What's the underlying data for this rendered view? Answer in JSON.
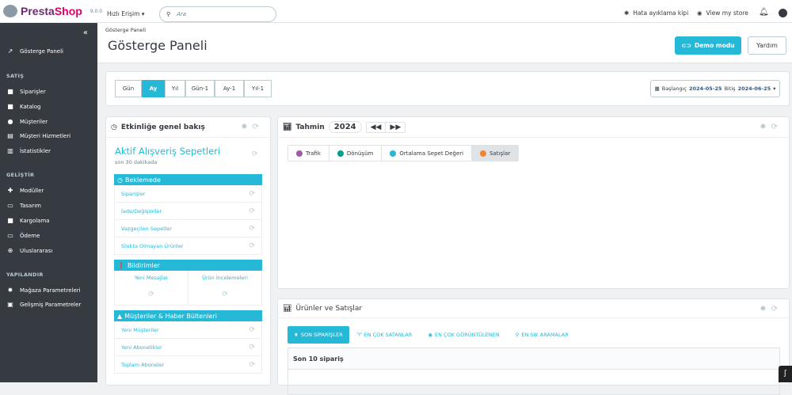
{
  "topbar": {
    "brand": "PrestaShop",
    "version": "9.0.0",
    "quick_access": "Hızlı Erişim",
    "search_placeholder": "Ara",
    "debug": "Hata ayıklama kipi",
    "view_store": "View my store"
  },
  "sidebar": {
    "dashboard": "Gösterge Paneli",
    "sections": [
      {
        "title": "SATIŞ",
        "items": [
          {
            "label": "Siparişler",
            "icon": "basket-icon"
          },
          {
            "label": "Katalog",
            "icon": "store-icon"
          },
          {
            "label": "Müşteriler",
            "icon": "user-circle-icon"
          },
          {
            "label": "Müşteri Hizmetleri",
            "icon": "chat-icon"
          },
          {
            "label": "İstatistikler",
            "icon": "stats-icon"
          }
        ]
      },
      {
        "title": "GELİŞTİR",
        "items": [
          {
            "label": "Modüller",
            "icon": "puzzle-icon"
          },
          {
            "label": "Tasarım",
            "icon": "desktop-icon"
          },
          {
            "label": "Kargolama",
            "icon": "truck-icon"
          },
          {
            "label": "Ödeme",
            "icon": "credit-card-icon"
          },
          {
            "label": "Uluslararası",
            "icon": "globe-icon"
          }
        ]
      },
      {
        "title": "YAPILANDIR",
        "items": [
          {
            "label": "Mağaza Parametreleri",
            "icon": "gear-icon"
          },
          {
            "label": "Gelişmiş Parametreler",
            "icon": "settings-box-icon"
          }
        ]
      }
    ]
  },
  "header": {
    "breadcrumb": "Gösterge Paneli",
    "title": "Gösterge Paneli",
    "demo": "Demo modu",
    "help": "Yardım"
  },
  "filters": {
    "periods": [
      "Gün",
      "Ay",
      "Yıl",
      "Gün-1",
      "Ay-1",
      "Yıl-1"
    ],
    "active": "Ay",
    "start_label": "Başlangıç",
    "start": "2024-05-25",
    "end_label": "Bitiş",
    "end": "2024-06-25"
  },
  "activity": {
    "title": "Etkinliğe genel bakış",
    "carts_title": "Aktif Alışveriş Sepetleri",
    "carts_sub": "son 30 dakikada",
    "pending": {
      "title": "Beklemede",
      "items": [
        "Siparişler",
        "İade/Değişimler",
        "Vazgeçilen Sepetler",
        "Stokta Olmayan Ürünler"
      ]
    },
    "notifications": {
      "title": "Bildirimler",
      "items": [
        "Yeni Mesajlar",
        "Ürün İncelemeleri"
      ]
    },
    "customers": {
      "title": "Müşteriler & Haber Bültenleri",
      "items": [
        "Yeni Müşteriler",
        "Yeni Abonelikler",
        "Toplam Aboneler"
      ]
    }
  },
  "forecast": {
    "title": "Tahmin",
    "year": "2024",
    "tabs": [
      {
        "label": "Trafik",
        "color": "#a35aa6"
      },
      {
        "label": "Dönüşüm",
        "color": "#00a08a"
      },
      {
        "label": "Ortalama Sepet Değeri",
        "color": "#25b9d7"
      },
      {
        "label": "Satışlar",
        "color": "#f08532"
      }
    ],
    "active": "Satışlar"
  },
  "products": {
    "title": "Ürünler ve Satışlar",
    "tabs": [
      "SON SİPARİŞLER",
      "EN ÇOK SATANLAR",
      "EN ÇOK GÖRÜNTÜLENEN",
      "EN SIK ARAMALAR"
    ],
    "active": "SON SİPARİŞLER",
    "table_title": "Son 10 sipariş"
  },
  "colors": {
    "accent": "#25b9d7",
    "sidebar": "#363a41"
  }
}
